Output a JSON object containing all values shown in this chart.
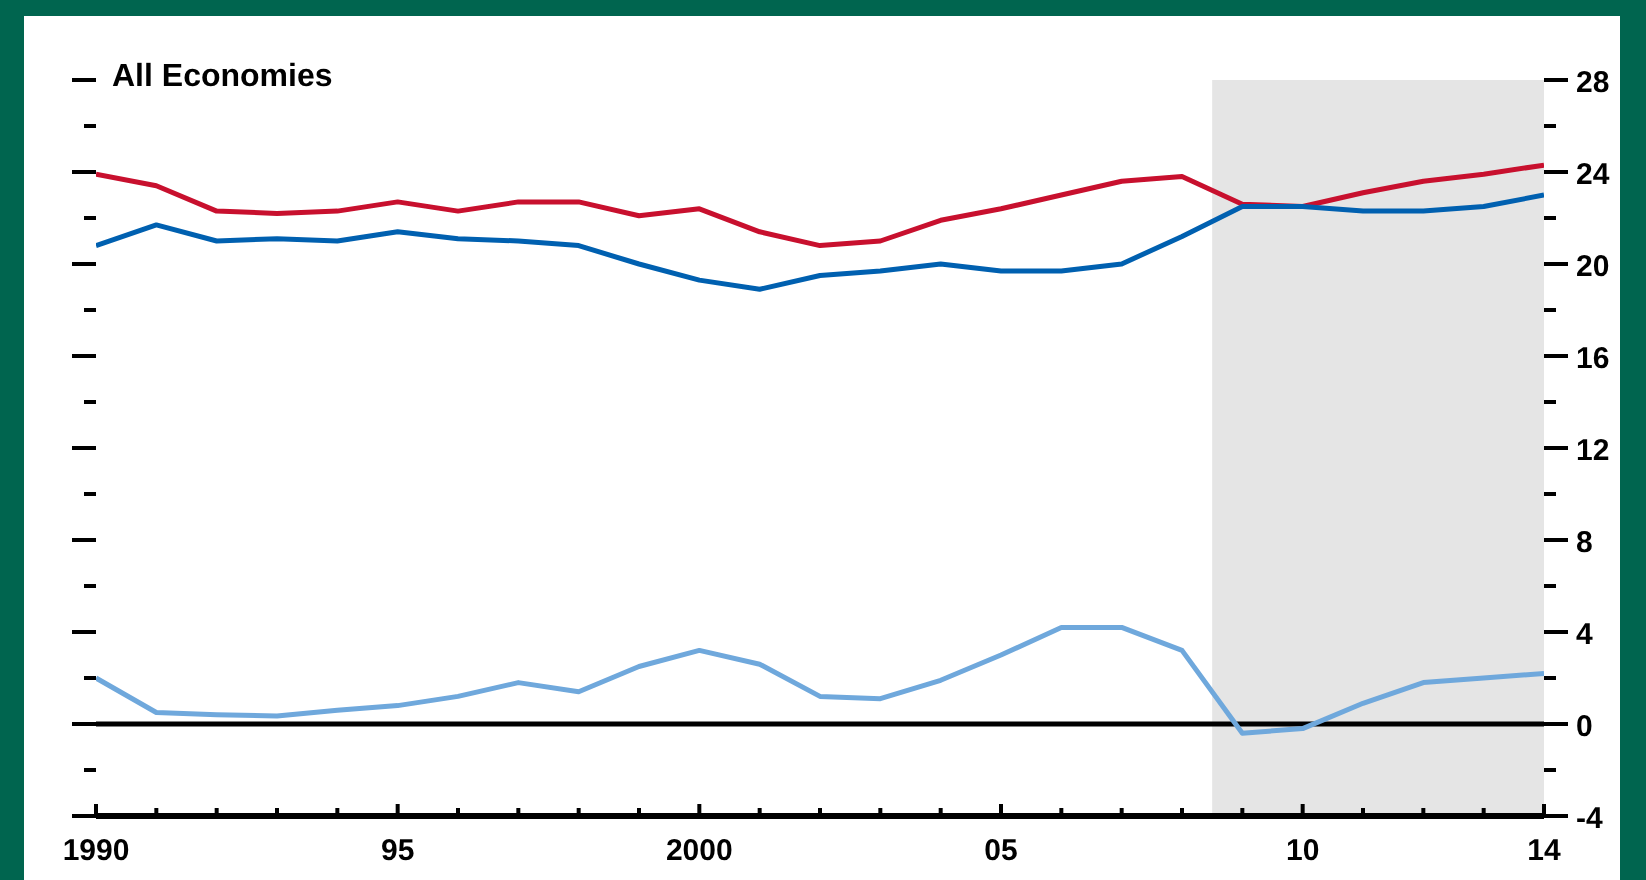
{
  "chart_data": {
    "type": "line",
    "title": "All Economies",
    "x": [
      1990,
      1991,
      1992,
      1993,
      1994,
      1995,
      1996,
      1997,
      1998,
      1999,
      2000,
      2001,
      2002,
      2003,
      2004,
      2005,
      2006,
      2007,
      2008,
      2009,
      2010,
      2011,
      2012,
      2013,
      2014
    ],
    "series": [
      {
        "color": "#c8102e",
        "values": [
          23.9,
          23.4,
          22.3,
          22.2,
          22.3,
          22.7,
          22.3,
          22.7,
          22.7,
          22.1,
          22.4,
          21.4,
          20.8,
          21.0,
          21.9,
          22.4,
          23.0,
          23.6,
          23.8,
          22.6,
          22.5,
          23.1,
          23.6,
          23.9,
          24.3
        ]
      },
      {
        "color": "#0060b0",
        "values": [
          20.8,
          21.7,
          21.0,
          21.1,
          21.0,
          21.4,
          21.1,
          21.0,
          20.8,
          20.0,
          19.3,
          18.9,
          19.5,
          19.7,
          20.0,
          19.7,
          19.7,
          20.0,
          21.2,
          22.5,
          22.5,
          22.3,
          22.3,
          22.5,
          23.0
        ]
      },
      {
        "color": "#6fa8dc",
        "values": [
          2.0,
          0.5,
          0.4,
          0.35,
          0.6,
          0.8,
          1.2,
          1.8,
          1.4,
          2.5,
          3.2,
          2.6,
          1.2,
          1.1,
          1.9,
          3.0,
          4.2,
          4.2,
          3.2,
          -0.4,
          -0.2,
          0.9,
          1.8,
          2.0,
          2.2
        ]
      }
    ],
    "xlim": [
      1990,
      2014
    ],
    "xticks": [
      {
        "value": 1990,
        "label": "1990"
      },
      {
        "value": 1991,
        "label": null
      },
      {
        "value": 1992,
        "label": null
      },
      {
        "value": 1993,
        "label": null
      },
      {
        "value": 1994,
        "label": null
      },
      {
        "value": 1995,
        "label": "95"
      },
      {
        "value": 1996,
        "label": null
      },
      {
        "value": 1997,
        "label": null
      },
      {
        "value": 1998,
        "label": null
      },
      {
        "value": 1999,
        "label": null
      },
      {
        "value": 2000,
        "label": "2000"
      },
      {
        "value": 2001,
        "label": null
      },
      {
        "value": 2002,
        "label": null
      },
      {
        "value": 2003,
        "label": null
      },
      {
        "value": 2004,
        "label": null
      },
      {
        "value": 2005,
        "label": "05"
      },
      {
        "value": 2006,
        "label": null
      },
      {
        "value": 2007,
        "label": null
      },
      {
        "value": 2008,
        "label": null
      },
      {
        "value": 2009,
        "label": null
      },
      {
        "value": 2010,
        "label": "10"
      },
      {
        "value": 2011,
        "label": null
      },
      {
        "value": 2012,
        "label": null
      },
      {
        "value": 2013,
        "label": null
      },
      {
        "value": 2014,
        "label": "14"
      }
    ],
    "ylim": [
      -4,
      28
    ],
    "yticks": [
      -4,
      {
        "value": -2,
        "label": null
      },
      0,
      {
        "value": 2,
        "label": null
      },
      4,
      {
        "value": 6,
        "label": null
      },
      8,
      {
        "value": 10,
        "label": null
      },
      12,
      {
        "value": 14,
        "label": null
      },
      16,
      {
        "value": 18,
        "label": null
      },
      20,
      {
        "value": 22,
        "label": null
      },
      24,
      {
        "value": 26,
        "label": null
      },
      28
    ],
    "ref_lines": [
      {
        "axis": "y",
        "value": 0,
        "color": "#000000"
      }
    ],
    "bands": [
      {
        "axis": "x",
        "from": 2008.5,
        "to": 2014,
        "color": "#e5e5e5"
      }
    ],
    "grid": false
  }
}
